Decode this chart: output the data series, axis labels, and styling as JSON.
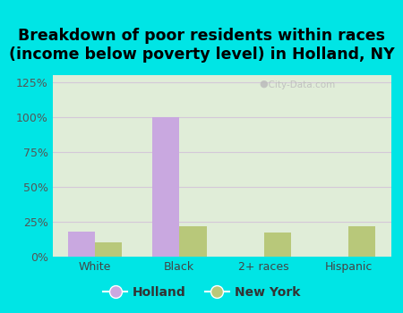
{
  "title": "Breakdown of poor residents within races\n(income below poverty level) in Holland, NY",
  "categories": [
    "White",
    "Black",
    "2+ races",
    "Hispanic"
  ],
  "holland_values": [
    18,
    100,
    0,
    0
  ],
  "newyork_values": [
    10,
    22,
    17,
    22
  ],
  "holland_color": "#c9a8e0",
  "newyork_color": "#b8c87a",
  "background_outer": "#00e5e5",
  "background_inner": "#e0edd8",
  "ylim": [
    0,
    130
  ],
  "yticks": [
    0,
    25,
    50,
    75,
    100,
    125
  ],
  "ytick_labels": [
    "0%",
    "25%",
    "50%",
    "75%",
    "100%",
    "125%"
  ],
  "title_fontsize": 12.5,
  "bar_width": 0.32,
  "legend_labels": [
    "Holland",
    "New York"
  ],
  "gridline_color": "#d4c8d8",
  "watermark": "City-Data.com"
}
